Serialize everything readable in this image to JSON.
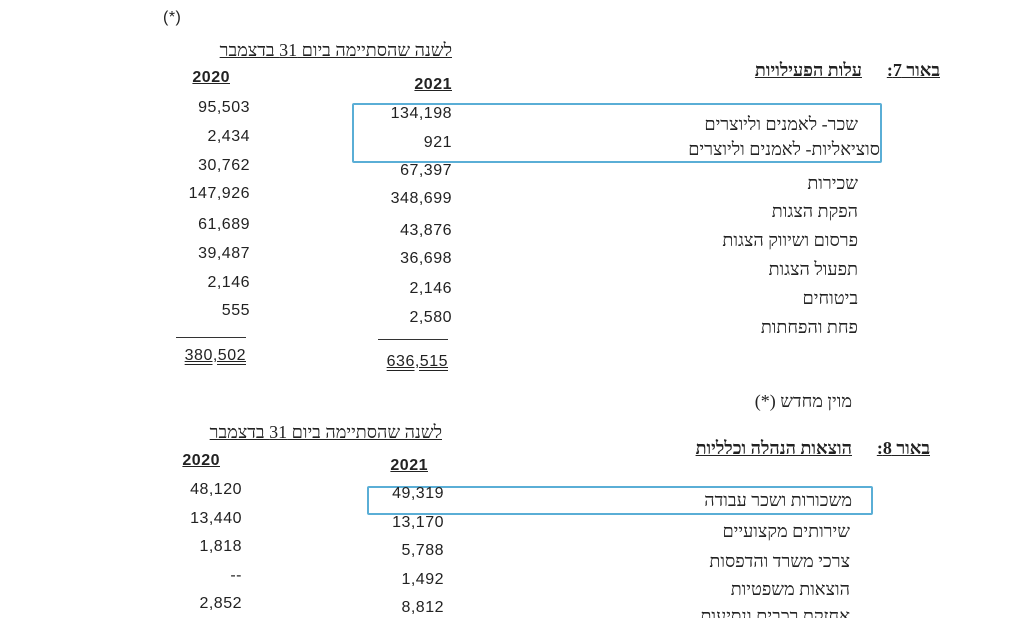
{
  "note_marker": "(*)",
  "note7": {
    "label": "באור 7:",
    "title": "עלות הפעילויות",
    "period_header": "לשנה שהסתיימה ביום 31 בדצמבר",
    "years": [
      "2021",
      "2020"
    ],
    "rows": [
      {
        "label": "שכר- לאמנים וליוצרים",
        "values": [
          "134,198",
          "95,503"
        ]
      },
      {
        "label": "סוציאליות- לאמנים וליוצרים",
        "values": [
          "921",
          "2,434"
        ]
      },
      {
        "label": "שכירות",
        "values": [
          "67,397",
          "30,762"
        ]
      },
      {
        "label": "הפקת הצגות",
        "values": [
          "348,699",
          "147,926"
        ]
      },
      {
        "label": "פרסום ושיווק הצגות",
        "values": [
          "43,876",
          "61,689"
        ]
      },
      {
        "label": "תפעול הצגות",
        "values": [
          "36,698",
          "39,487"
        ]
      },
      {
        "label": "ביטוחים",
        "values": [
          "2,146",
          "2,146"
        ]
      },
      {
        "label": "פחת והפחתות",
        "values": [
          "2,580",
          "555"
        ]
      }
    ],
    "totals": [
      "636,515",
      "380,502"
    ]
  },
  "footnote": "מוין מחדש (*)",
  "note8": {
    "label": "באור 8:",
    "title": "הוצאות הנהלה וכלליות",
    "period_header": "לשנה שהסתיימה ביום 31 בדצמבר",
    "years": [
      "2021",
      "2020"
    ],
    "rows": [
      {
        "label": "משכורות ושכר עבודה",
        "values": [
          "49,319",
          "48,120"
        ]
      },
      {
        "label": "שירותים מקצועיים",
        "values": [
          "13,170",
          "13,440"
        ]
      },
      {
        "label": "צרכי משרד והדפסות",
        "values": [
          "5,788",
          "1,818"
        ]
      },
      {
        "label": "הוצאות משפטיות",
        "values": [
          "1,492",
          "--"
        ]
      },
      {
        "label": "אחזקת רכבים ונסיעות",
        "values": [
          "8,812",
          "2,852"
        ]
      }
    ]
  }
}
